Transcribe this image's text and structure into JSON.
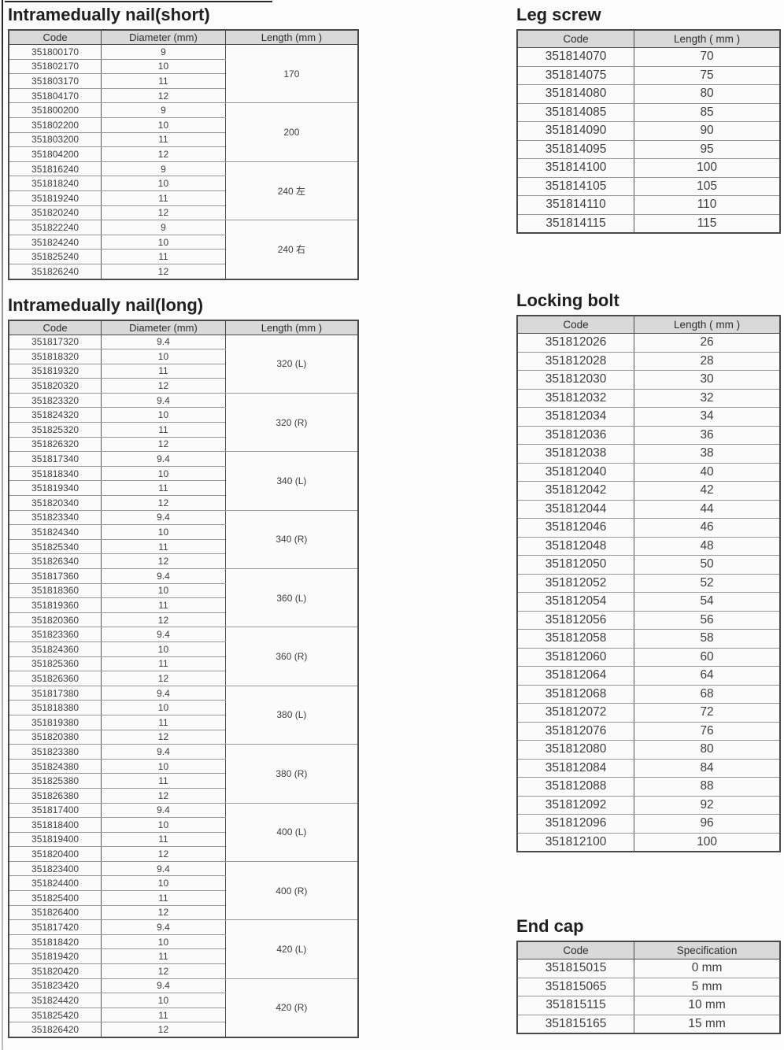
{
  "colors": {
    "header_bg": "#d9d9d9",
    "border_dark": "#4a4a4a",
    "text": "#3a3a3a"
  },
  "tables": {
    "nail_short": {
      "title": "Intramedually nail(short)",
      "headers": [
        "Code",
        "Diameter (mm)",
        "Length (mm )"
      ],
      "groups": [
        {
          "length": "170",
          "rows": [
            [
              "351800170",
              "9"
            ],
            [
              "351802170",
              "10"
            ],
            [
              "351803170",
              "11"
            ],
            [
              "351804170",
              "12"
            ]
          ]
        },
        {
          "length": "200",
          "rows": [
            [
              "351800200",
              "9"
            ],
            [
              "351802200",
              "10"
            ],
            [
              "351803200",
              "11"
            ],
            [
              "351804200",
              "12"
            ]
          ]
        },
        {
          "length": "240 左",
          "rows": [
            [
              "351816240",
              "9"
            ],
            [
              "351818240",
              "10"
            ],
            [
              "351819240",
              "11"
            ],
            [
              "351820240",
              "12"
            ]
          ]
        },
        {
          "length": "240 右",
          "rows": [
            [
              "351822240",
              "9"
            ],
            [
              "351824240",
              "10"
            ],
            [
              "351825240",
              "11"
            ],
            [
              "351826240",
              "12"
            ]
          ]
        }
      ]
    },
    "nail_long": {
      "title": "Intramedually nail(long)",
      "headers": [
        "Code",
        "Diameter (mm)",
        "Length (mm )"
      ],
      "groups": [
        {
          "length": "320 (L)",
          "rows": [
            [
              "351817320",
              "9.4"
            ],
            [
              "351818320",
              "10"
            ],
            [
              "351819320",
              "11"
            ],
            [
              "351820320",
              "12"
            ]
          ]
        },
        {
          "length": "320 (R)",
          "rows": [
            [
              "351823320",
              "9.4"
            ],
            [
              "351824320",
              "10"
            ],
            [
              "351825320",
              "11"
            ],
            [
              "351826320",
              "12"
            ]
          ]
        },
        {
          "length": "340 (L)",
          "rows": [
            [
              "351817340",
              "9.4"
            ],
            [
              "351818340",
              "10"
            ],
            [
              "351819340",
              "11"
            ],
            [
              "351820340",
              "12"
            ]
          ]
        },
        {
          "length": "340 (R)",
          "rows": [
            [
              "351823340",
              "9.4"
            ],
            [
              "351824340",
              "10"
            ],
            [
              "351825340",
              "11"
            ],
            [
              "351826340",
              "12"
            ]
          ]
        },
        {
          "length": "360 (L)",
          "rows": [
            [
              "351817360",
              "9.4"
            ],
            [
              "351818360",
              "10"
            ],
            [
              "351819360",
              "11"
            ],
            [
              "351820360",
              "12"
            ]
          ]
        },
        {
          "length": "360 (R)",
          "rows": [
            [
              "351823360",
              "9.4"
            ],
            [
              "351824360",
              "10"
            ],
            [
              "351825360",
              "11"
            ],
            [
              "351826360",
              "12"
            ]
          ]
        },
        {
          "length": "380 (L)",
          "rows": [
            [
              "351817380",
              "9.4"
            ],
            [
              "351818380",
              "10"
            ],
            [
              "351819380",
              "11"
            ],
            [
              "351820380",
              "12"
            ]
          ]
        },
        {
          "length": "380 (R)",
          "rows": [
            [
              "351823380",
              "9.4"
            ],
            [
              "351824380",
              "10"
            ],
            [
              "351825380",
              "11"
            ],
            [
              "351826380",
              "12"
            ]
          ]
        },
        {
          "length": "400 (L)",
          "rows": [
            [
              "351817400",
              "9.4"
            ],
            [
              "351818400",
              "10"
            ],
            [
              "351819400",
              "11"
            ],
            [
              "351820400",
              "12"
            ]
          ]
        },
        {
          "length": "400 (R)",
          "rows": [
            [
              "351823400",
              "9.4"
            ],
            [
              "351824400",
              "10"
            ],
            [
              "351825400",
              "11"
            ],
            [
              "351826400",
              "12"
            ]
          ]
        },
        {
          "length": "420 (L)",
          "rows": [
            [
              "351817420",
              "9.4"
            ],
            [
              "351818420",
              "10"
            ],
            [
              "351819420",
              "11"
            ],
            [
              "351820420",
              "12"
            ]
          ]
        },
        {
          "length": "420 (R)",
          "rows": [
            [
              "351823420",
              "9.4"
            ],
            [
              "351824420",
              "10"
            ],
            [
              "351825420",
              "11"
            ],
            [
              "351826420",
              "12"
            ]
          ]
        }
      ]
    },
    "leg_screw": {
      "title": "Leg screw",
      "headers": [
        "Code",
        "Length ( mm )"
      ],
      "rows": [
        [
          "351814070",
          "70"
        ],
        [
          "351814075",
          "75"
        ],
        [
          "351814080",
          "80"
        ],
        [
          "351814085",
          "85"
        ],
        [
          "351814090",
          "90"
        ],
        [
          "351814095",
          "95"
        ],
        [
          "351814100",
          "100"
        ],
        [
          "351814105",
          "105"
        ],
        [
          "351814110",
          "110"
        ],
        [
          "351814115",
          "115"
        ]
      ]
    },
    "locking_bolt": {
      "title": "Locking bolt",
      "headers": [
        "Code",
        "Length ( mm )"
      ],
      "rows": [
        [
          "351812026",
          "26"
        ],
        [
          "351812028",
          "28"
        ],
        [
          "351812030",
          "30"
        ],
        [
          "351812032",
          "32"
        ],
        [
          "351812034",
          "34"
        ],
        [
          "351812036",
          "36"
        ],
        [
          "351812038",
          "38"
        ],
        [
          "351812040",
          "40"
        ],
        [
          "351812042",
          "42"
        ],
        [
          "351812044",
          "44"
        ],
        [
          "351812046",
          "46"
        ],
        [
          "351812048",
          "48"
        ],
        [
          "351812050",
          "50"
        ],
        [
          "351812052",
          "52"
        ],
        [
          "351812054",
          "54"
        ],
        [
          "351812056",
          "56"
        ],
        [
          "351812058",
          "58"
        ],
        [
          "351812060",
          "60"
        ],
        [
          "351812064",
          "64"
        ],
        [
          "351812068",
          "68"
        ],
        [
          "351812072",
          "72"
        ],
        [
          "351812076",
          "76"
        ],
        [
          "351812080",
          "80"
        ],
        [
          "351812084",
          "84"
        ],
        [
          "351812088",
          "88"
        ],
        [
          "351812092",
          "92"
        ],
        [
          "351812096",
          "96"
        ],
        [
          "351812100",
          "100"
        ]
      ]
    },
    "end_cap": {
      "title": "End cap",
      "headers": [
        "Code",
        "Specification"
      ],
      "rows": [
        [
          "351815015",
          "0 mm"
        ],
        [
          "351815065",
          "5 mm"
        ],
        [
          "351815115",
          "10 mm"
        ],
        [
          "351815165",
          "15 mm"
        ]
      ]
    }
  }
}
